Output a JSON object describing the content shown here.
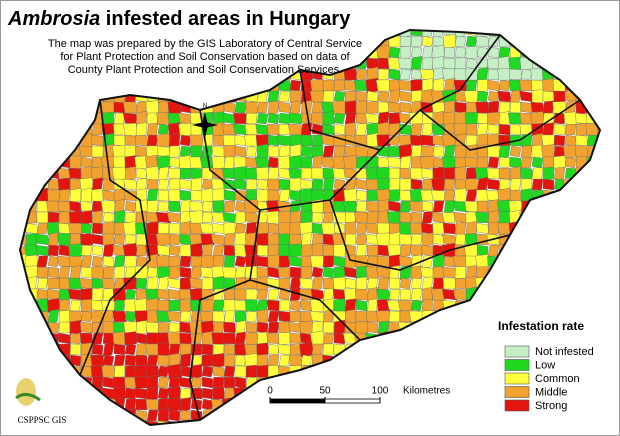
{
  "title": {
    "italic": "Ambrosia",
    "rest": " infested areas in Hungary"
  },
  "description": [
    "The map was prepared by the GIS Laboratory of Central Service",
    "for Plant Protection and Soil Conservation based on data of",
    "County Plant Protection and Soil Conservation Services."
  ],
  "compass": "N",
  "legend": {
    "title": "Infestation rate",
    "items": [
      {
        "label": "Not infested",
        "color": "#c6efc6"
      },
      {
        "label": "Low",
        "color": "#1fd81f"
      },
      {
        "label": "Common",
        "color": "#ffff3c"
      },
      {
        "label": "Middle",
        "color": "#f2a22e"
      },
      {
        "label": "Strong",
        "color": "#e4140f"
      }
    ]
  },
  "scale": {
    "ticks": [
      0,
      50,
      100
    ],
    "unit": "Kilometres"
  },
  "logo": "CSPPSC GIS"
}
